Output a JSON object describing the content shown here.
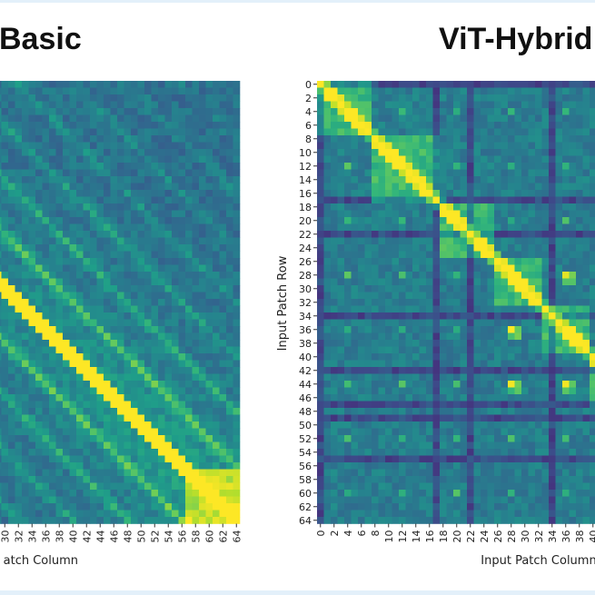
{
  "chart_data": [
    {
      "type": "heatmap",
      "title": "Basic",
      "colormap": "viridis",
      "xlabel": "atch Column",
      "x_tick_labels": [
        "30",
        "32",
        "34",
        "36",
        "38",
        "40",
        "42",
        "44",
        "46",
        "48",
        "50",
        "52",
        "54",
        "56",
        "58",
        "60",
        "62",
        "64"
      ],
      "y_tick_labels": [],
      "pattern": "strong diagonal with parallel bands every 8 patches"
    },
    {
      "type": "heatmap",
      "title": "ViT-Hybrid",
      "colormap": "viridis",
      "xlabel": "Input Patch Column",
      "ylabel": "Input Patch Row",
      "x_tick_labels": [
        "0",
        "2",
        "4",
        "6",
        "8",
        "10",
        "12",
        "14",
        "16",
        "18",
        "20",
        "22",
        "24",
        "26",
        "28",
        "30",
        "32",
        "34",
        "36",
        "38",
        "40"
      ],
      "y_tick_labels": [
        "0",
        "2",
        "4",
        "6",
        "8",
        "10",
        "12",
        "14",
        "16",
        "18",
        "20",
        "22",
        "24",
        "26",
        "28",
        "30",
        "32",
        "34",
        "36",
        "38",
        "40",
        "42",
        "44",
        "46",
        "48",
        "50",
        "52",
        "54",
        "56",
        "58",
        "60",
        "62",
        "64"
      ],
      "pattern": "strong diagonal with block structure"
    }
  ]
}
